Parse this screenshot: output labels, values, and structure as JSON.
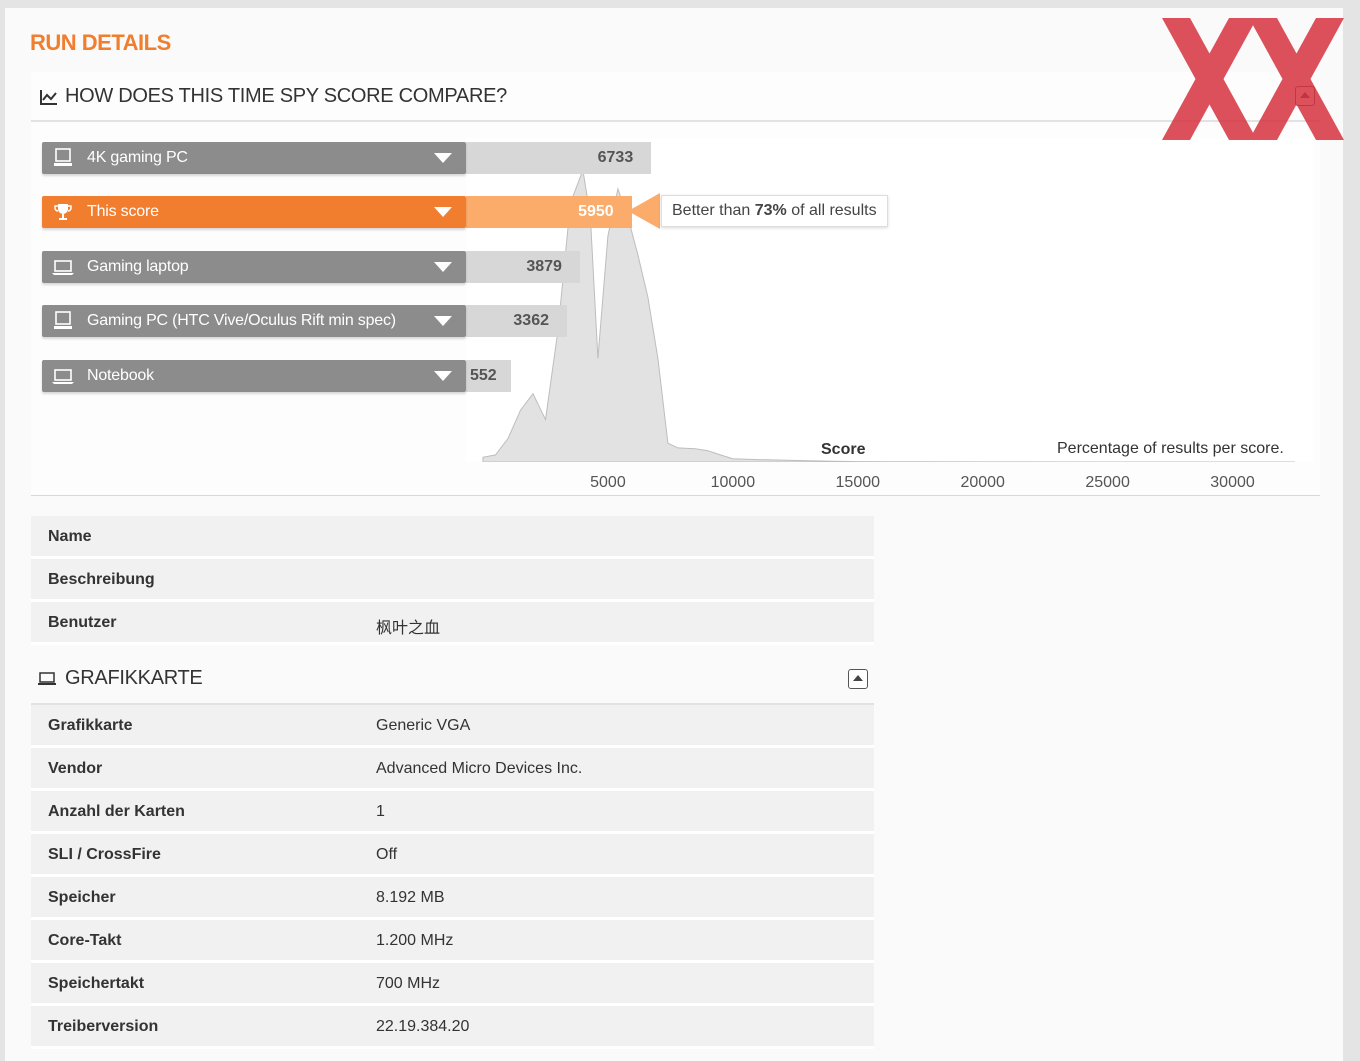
{
  "run_title": "RUN DETAILS",
  "compare": {
    "title": "HOW DOES THIS TIME SPY SCORE COMPARE?",
    "bars": [
      {
        "label": "4K gaming PC",
        "value": "6733",
        "icon": "desktop-icon",
        "active": false
      },
      {
        "label": "This score",
        "value": "5950",
        "icon": "trophy-icon",
        "active": true
      },
      {
        "label": "Gaming laptop",
        "value": "3879",
        "icon": "laptop-icon",
        "active": false
      },
      {
        "label": "Gaming PC (HTC Vive/Oculus Rift min spec)",
        "value": "3362",
        "icon": "desktop-icon",
        "active": false
      },
      {
        "label": "Notebook",
        "value": "552",
        "icon": "laptop-icon",
        "active": false
      }
    ],
    "tooltip": {
      "prefix": "Better than ",
      "percent": "73%",
      "suffix": " of all results"
    },
    "x_axis_title": "Score",
    "distribution_note": "Percentage of results per score.",
    "colors": {
      "accent": "#f07e2e",
      "accent_light": "#fbab6a",
      "bar_grey": "#8c8c8c",
      "value_grey": "#d7d7d7"
    }
  },
  "chart_data": {
    "type": "area",
    "xlabel": "Score",
    "ylabel": "Percentage of results per score.",
    "xlim": [
      0,
      32500
    ],
    "x_ticks": [
      5000,
      10000,
      15000,
      20000,
      25000,
      30000
    ],
    "x": [
      0,
      500,
      1000,
      1500,
      2000,
      2500,
      3000,
      3500,
      4000,
      4300,
      4600,
      5000,
      5400,
      5800,
      6200,
      6600,
      7000,
      7400,
      7800,
      8500,
      9000,
      9500,
      10000,
      11000,
      12000,
      13000,
      14000,
      15000,
      17000,
      20000,
      25000,
      30000,
      32500
    ],
    "y": [
      1.0,
      1.5,
      5,
      11,
      14.5,
      9,
      28,
      55,
      62,
      52,
      22,
      48,
      58,
      52,
      44,
      35,
      22,
      4,
      3,
      2.8,
      2.4,
      1.5,
      0.7,
      0.5,
      0.4,
      0.25,
      0.15,
      0.08,
      0.04,
      0.02,
      0.01,
      0.005,
      0
    ],
    "markers": [
      {
        "name": "4K gaming PC",
        "value": 6733
      },
      {
        "name": "This score",
        "value": 5950
      },
      {
        "name": "Gaming laptop",
        "value": 3879
      },
      {
        "name": "Gaming PC (HTC Vive/Oculus Rift min spec)",
        "value": 3362
      },
      {
        "name": "Notebook",
        "value": 552
      }
    ]
  },
  "general": {
    "rows": [
      {
        "key": "Name",
        "value": ""
      },
      {
        "key": "Beschreibung",
        "value": ""
      },
      {
        "key": "Benutzer",
        "value": "枫叶之血"
      }
    ]
  },
  "graphics": {
    "title": "GRAFIKKARTE",
    "rows": [
      {
        "key": "Grafikkarte",
        "value": "Generic VGA"
      },
      {
        "key": "Vendor",
        "value": "Advanced Micro Devices Inc."
      },
      {
        "key": "Anzahl der Karten",
        "value": "1"
      },
      {
        "key": "SLI / CrossFire",
        "value": "Off"
      },
      {
        "key": "Speicher",
        "value": "8.192 MB"
      },
      {
        "key": "Core-Takt",
        "value": "1.200 MHz"
      },
      {
        "key": "Speichertakt",
        "value": "700 MHz"
      },
      {
        "key": "Treiberversion",
        "value": "22.19.384.20"
      }
    ]
  }
}
